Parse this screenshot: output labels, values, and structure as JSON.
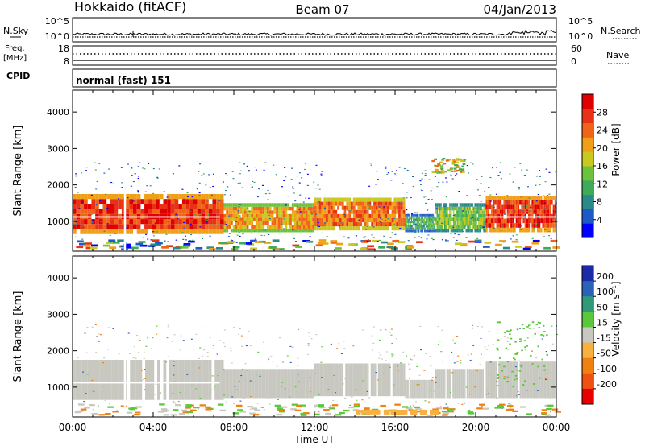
{
  "header": {
    "station": "Hokkaido (fitACF)",
    "beam": "Beam 07",
    "date": "04/Jan/2013"
  },
  "nsky_panel": {
    "left_label": "N.Sky",
    "right_label": "N.Search",
    "left_ticks": [
      "10^5",
      "10^0"
    ],
    "right_ticks": [
      "10^5",
      "10^0"
    ]
  },
  "freq_panel": {
    "left_label_1": "Freq.",
    "left_label_2": "[MHz]",
    "right_label": "Nave",
    "left_ticks": [
      "18",
      "8"
    ],
    "right_ticks": [
      "60",
      "0"
    ]
  },
  "cpid_panel": {
    "label": "CPID",
    "mode": "normal (fast) 151"
  },
  "chart_data": [
    {
      "type": "heatmap",
      "name": "power",
      "ylabel": "Slant Range [km]",
      "ylim": [
        180,
        4600
      ],
      "y_ticks": [
        1000,
        2000,
        3000,
        4000
      ],
      "xlim_hours": [
        0,
        24
      ],
      "colorbar": {
        "label": "Power [dB]",
        "range": [
          0,
          32
        ],
        "ticks": [
          "4",
          "8",
          "12",
          "16",
          "20",
          "24",
          "28"
        ],
        "colors": [
          "#0000ff",
          "#1d59c8",
          "#2a8a8a",
          "#3faa5a",
          "#6cc23a",
          "#c8c820",
          "#f0a018",
          "#f06418",
          "#e83218",
          "#e00000"
        ]
      }
    },
    {
      "type": "heatmap",
      "name": "velocity",
      "ylabel": "Slant Range [km]",
      "ylim": [
        180,
        4600
      ],
      "y_ticks": [
        1000,
        2000,
        3000,
        4000
      ],
      "xlim_hours": [
        0,
        24
      ],
      "colorbar": {
        "label": "Velocity [m s⁻¹]",
        "ticks": [
          "200",
          "100",
          "50",
          "15",
          "-15",
          "-50",
          "-100",
          "-200"
        ],
        "colors": [
          "#1a2aa8",
          "#2a62b8",
          "#2e9a7a",
          "#5ac83a",
          "#c8c8c0",
          "#f8b040",
          "#f08010",
          "#f05010",
          "#e80000"
        ]
      }
    }
  ],
  "x_axis": {
    "label": "Time UT",
    "ticks": [
      "00:00",
      "04:00",
      "08:00",
      "12:00",
      "16:00",
      "20:00",
      "00:00"
    ]
  }
}
